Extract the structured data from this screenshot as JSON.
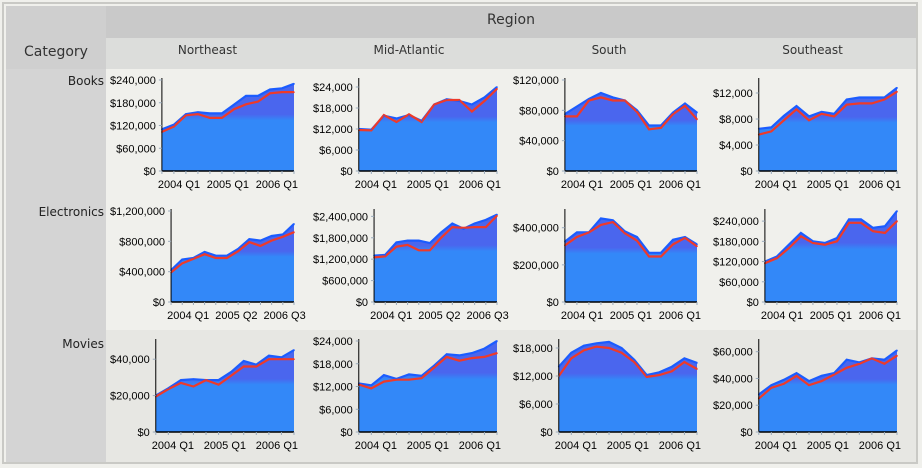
{
  "header": {
    "region_label": "Region",
    "category_label": "Category"
  },
  "regions": [
    "Northeast",
    "Mid-Atlantic",
    "South",
    "Southeast"
  ],
  "categories": [
    "Books",
    "Electronics",
    "Movies"
  ],
  "colors": {
    "area_fill": "#3388f8",
    "area_top": "#4a66ee",
    "area_edge": "#1b5cff",
    "line": "#ee3a2a"
  },
  "chart_data": [
    {
      "type": "area",
      "category": "Books",
      "region": "Northeast",
      "ylim": [
        0,
        240000
      ],
      "yticks": [
        0,
        60000,
        120000,
        180000,
        240000
      ],
      "xticks": [
        "2004 Q1",
        "2005 Q1",
        "2006 Q1"
      ],
      "series": [
        {
          "values": [
            110000,
            122000,
            150000,
            155000,
            152000,
            152000,
            175000,
            198000,
            198000,
            215000,
            218000,
            230000
          ]
        },
        {
          "values": [
            103000,
            117000,
            147000,
            150000,
            140000,
            140000,
            163000,
            176000,
            183000,
            205000,
            208000,
            208000
          ]
        }
      ]
    },
    {
      "type": "area",
      "category": "Books",
      "region": "Mid-Atlantic",
      "ylim": [
        0,
        26000
      ],
      "yticks": [
        0,
        6000,
        12000,
        18000,
        24000
      ],
      "xticks": [
        "2004 Q1",
        "2005 Q1",
        "2006 Q1"
      ],
      "series": [
        {
          "values": [
            12000,
            11800,
            15800,
            15000,
            16000,
            14300,
            19000,
            20500,
            20000,
            19000,
            21000,
            24000
          ]
        },
        {
          "values": [
            11700,
            11600,
            16000,
            14000,
            16200,
            14000,
            19000,
            20300,
            20300,
            17000,
            20000,
            23500
          ]
        }
      ]
    },
    {
      "type": "area",
      "category": "Books",
      "region": "South",
      "ylim": [
        0,
        120000
      ],
      "yticks": [
        0,
        40000,
        80000,
        120000
      ],
      "xticks": [
        "2004 Q1",
        "2005 Q1",
        "2006 Q1"
      ],
      "series": [
        {
          "values": [
            75000,
            85000,
            95000,
            103000,
            97000,
            93000,
            80000,
            60000,
            60000,
            77000,
            89000,
            77000
          ]
        },
        {
          "values": [
            72000,
            72000,
            93000,
            97000,
            93000,
            93000,
            78000,
            55000,
            57000,
            75000,
            86000,
            68000
          ]
        }
      ]
    },
    {
      "type": "area",
      "category": "Books",
      "region": "Southeast",
      "ylim": [
        0,
        14000
      ],
      "yticks": [
        0,
        4000,
        8000,
        12000
      ],
      "xticks": [
        "2004 Q1",
        "2005 Q1",
        "2006 Q1"
      ],
      "series": [
        {
          "values": [
            6500,
            6700,
            8500,
            10000,
            8400,
            9100,
            8800,
            11000,
            11300,
            11300,
            11300,
            12800
          ]
        },
        {
          "values": [
            5600,
            6100,
            7800,
            9500,
            7800,
            8800,
            8400,
            10200,
            10400,
            10400,
            11000,
            12200
          ]
        }
      ]
    },
    {
      "type": "area",
      "category": "Electronics",
      "region": "Northeast",
      "ylim": [
        0,
        1200000
      ],
      "yticks": [
        0,
        400000,
        800000,
        1200000
      ],
      "xticks": [
        "2004 Q1",
        "2005 Q2",
        "2006 Q3"
      ],
      "series": [
        {
          "values": [
            420000,
            560000,
            580000,
            660000,
            610000,
            610000,
            700000,
            830000,
            810000,
            870000,
            890000,
            1030000
          ]
        },
        {
          "values": [
            390000,
            510000,
            570000,
            630000,
            580000,
            580000,
            670000,
            790000,
            740000,
            810000,
            860000,
            920000
          ]
        }
      ]
    },
    {
      "type": "area",
      "category": "Electronics",
      "region": "Mid-Atlantic",
      "ylim": [
        0,
        2550000
      ],
      "yticks": [
        0,
        600000,
        1200000,
        1800000,
        2400000
      ],
      "xticks": [
        "2004 Q1",
        "2005 Q2",
        "2006 Q3"
      ],
      "series": [
        {
          "values": [
            1300000,
            1320000,
            1670000,
            1720000,
            1720000,
            1650000,
            1950000,
            2200000,
            2050000,
            2200000,
            2300000,
            2450000
          ]
        },
        {
          "values": [
            1250000,
            1280000,
            1550000,
            1600000,
            1450000,
            1450000,
            1800000,
            2100000,
            2080000,
            2100000,
            2100000,
            2420000
          ]
        }
      ]
    },
    {
      "type": "area",
      "category": "Electronics",
      "region": "South",
      "ylim": [
        0,
        490000
      ],
      "yticks": [
        0,
        200000,
        400000
      ],
      "xticks": [
        "2004 Q1",
        "2005 Q1",
        "2006 Q1"
      ],
      "series": [
        {
          "values": [
            325000,
            375000,
            375000,
            450000,
            440000,
            380000,
            350000,
            265000,
            265000,
            335000,
            350000,
            310000
          ]
        },
        {
          "values": [
            305000,
            350000,
            375000,
            415000,
            430000,
            370000,
            330000,
            245000,
            245000,
            310000,
            345000,
            300000
          ]
        }
      ]
    },
    {
      "type": "area",
      "category": "Electronics",
      "region": "Southeast",
      "ylim": [
        0,
        270000
      ],
      "yticks": [
        0,
        60000,
        120000,
        180000,
        240000
      ],
      "xticks": [
        "2004 Q1",
        "2005 Q1",
        "2006 Q1"
      ],
      "series": [
        {
          "values": [
            120000,
            135000,
            170000,
            205000,
            180000,
            175000,
            190000,
            245000,
            245000,
            220000,
            225000,
            270000
          ]
        },
        {
          "values": [
            115000,
            130000,
            160000,
            195000,
            175000,
            170000,
            180000,
            235000,
            235000,
            210000,
            205000,
            240000
          ]
        }
      ]
    },
    {
      "type": "area",
      "category": "Movies",
      "region": "Northeast",
      "ylim": [
        0,
        50000
      ],
      "yticks": [
        0,
        20000,
        40000
      ],
      "xticks": [
        "2004 Q1",
        "2005 Q1",
        "2006 Q1"
      ],
      "series": [
        {
          "values": [
            20000,
            24000,
            28500,
            29000,
            28500,
            28500,
            33000,
            39000,
            37000,
            42000,
            41000,
            45000
          ]
        },
        {
          "values": [
            19500,
            23500,
            27000,
            25000,
            28500,
            26000,
            31000,
            36000,
            36000,
            40000,
            40000,
            40000
          ]
        }
      ]
    },
    {
      "type": "area",
      "category": "Movies",
      "region": "Mid-Atlantic",
      "ylim": [
        0,
        24000
      ],
      "yticks": [
        0,
        6000,
        12000,
        18000,
        24000
      ],
      "xticks": [
        "2004 Q1",
        "2005 Q1",
        "2006 Q1"
      ],
      "series": [
        {
          "values": [
            12800,
            12300,
            15000,
            14000,
            15200,
            14800,
            17500,
            20500,
            20200,
            20800,
            22000,
            24000
          ]
        },
        {
          "values": [
            12500,
            11500,
            13300,
            13800,
            13800,
            14200,
            17000,
            19800,
            18800,
            19500,
            19800,
            20800
          ]
        }
      ]
    },
    {
      "type": "area",
      "category": "Movies",
      "region": "South",
      "ylim": [
        0,
        19500
      ],
      "yticks": [
        0,
        6000,
        12000,
        18000
      ],
      "xticks": [
        "2004 Q1",
        "2005 Q1",
        "2006 Q1"
      ],
      "series": [
        {
          "values": [
            14000,
            17000,
            18500,
            19000,
            19300,
            18000,
            15500,
            12200,
            12800,
            14000,
            15800,
            14800
          ]
        },
        {
          "values": [
            12000,
            15800,
            17500,
            18300,
            18000,
            17000,
            15000,
            11800,
            12200,
            13000,
            15000,
            13500
          ]
        }
      ]
    },
    {
      "type": "area",
      "category": "Movies",
      "region": "Southeast",
      "ylim": [
        0,
        68000
      ],
      "yticks": [
        0,
        20000,
        40000,
        60000
      ],
      "xticks": [
        "2004 Q1",
        "2005 Q1",
        "2006 Q1"
      ],
      "series": [
        {
          "values": [
            28000,
            35000,
            39000,
            44000,
            38000,
            42000,
            44000,
            54000,
            52000,
            55000,
            54000,
            61000
          ]
        },
        {
          "values": [
            25000,
            33000,
            36000,
            42000,
            35000,
            38000,
            43000,
            48000,
            51000,
            55000,
            51000,
            57000
          ]
        }
      ]
    }
  ]
}
